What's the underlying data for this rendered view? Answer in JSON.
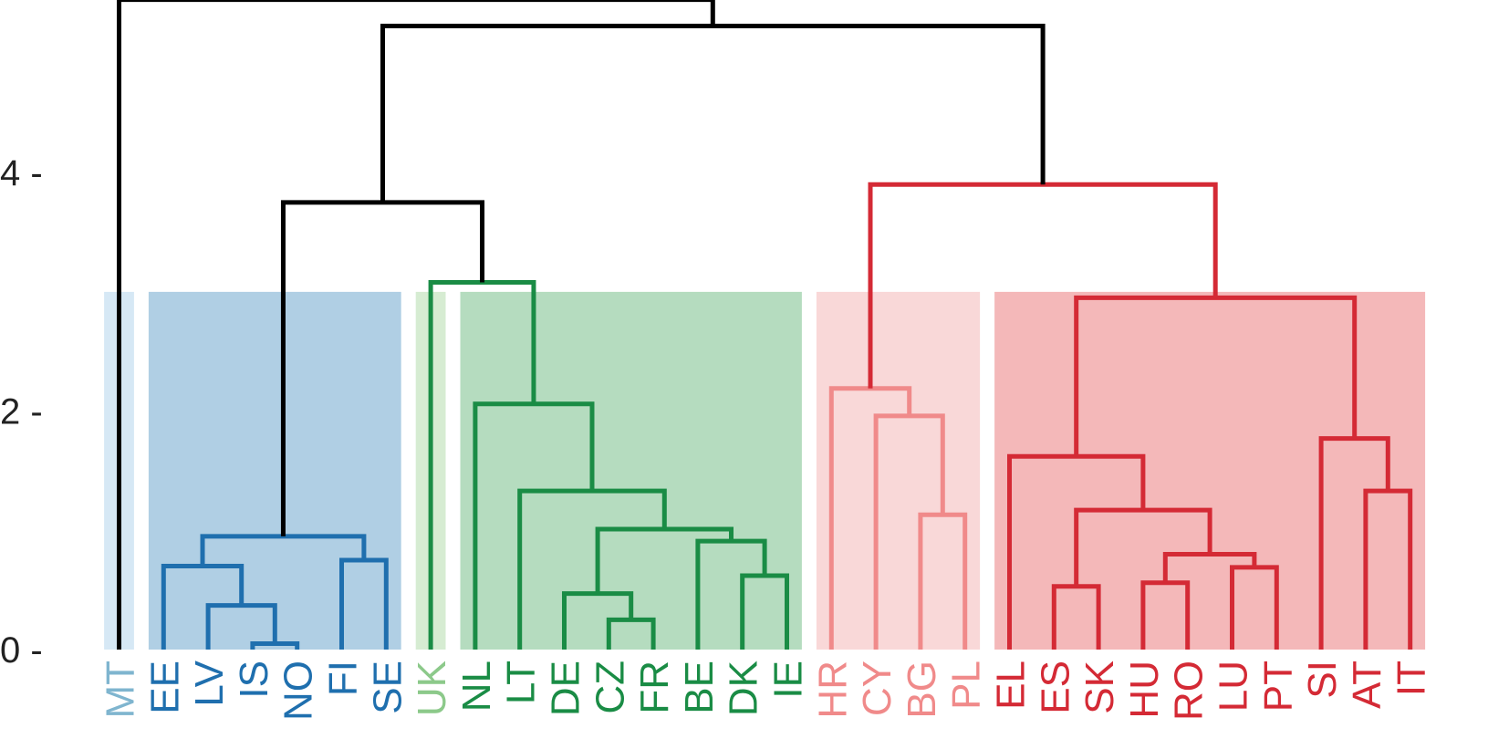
{
  "chart_data": {
    "type": "dendrogram",
    "title": "",
    "xlabel": "",
    "ylabel": "",
    "ylim": [
      0,
      5.45
    ],
    "y_ticks": [
      {
        "value": 0,
        "label": "0 -"
      },
      {
        "value": 2,
        "label": "2 -"
      },
      {
        "value": 4,
        "label": "4 -"
      }
    ],
    "cut_height": 3.0,
    "leaves": [
      {
        "label": "MT",
        "color": "#7fb5cf"
      },
      {
        "label": "EE",
        "color": "#1f6fae"
      },
      {
        "label": "LV",
        "color": "#1f6fae"
      },
      {
        "label": "IS",
        "color": "#1f6fae"
      },
      {
        "label": "NO",
        "color": "#1f6fae"
      },
      {
        "label": "FI",
        "color": "#1f6fae"
      },
      {
        "label": "SE",
        "color": "#1f6fae"
      },
      {
        "label": "UK",
        "color": "#8cc98a"
      },
      {
        "label": "NL",
        "color": "#1a8c45"
      },
      {
        "label": "LT",
        "color": "#1a8c45"
      },
      {
        "label": "DE",
        "color": "#1a8c45"
      },
      {
        "label": "CZ",
        "color": "#1a8c45"
      },
      {
        "label": "FR",
        "color": "#1a8c45"
      },
      {
        "label": "BE",
        "color": "#1a8c45"
      },
      {
        "label": "DK",
        "color": "#1a8c45"
      },
      {
        "label": "IE",
        "color": "#1a8c45"
      },
      {
        "label": "HR",
        "color": "#f08a8a"
      },
      {
        "label": "CY",
        "color": "#f08a8a"
      },
      {
        "label": "BG",
        "color": "#f08a8a"
      },
      {
        "label": "PL",
        "color": "#f08a8a"
      },
      {
        "label": "EL",
        "color": "#d42a35"
      },
      {
        "label": "ES",
        "color": "#d42a35"
      },
      {
        "label": "SK",
        "color": "#d42a35"
      },
      {
        "label": "HU",
        "color": "#d42a35"
      },
      {
        "label": "RO",
        "color": "#d42a35"
      },
      {
        "label": "LU",
        "color": "#d42a35"
      },
      {
        "label": "PT",
        "color": "#d42a35"
      },
      {
        "label": "SI",
        "color": "#d42a35"
      },
      {
        "label": "AT",
        "color": "#d42a35"
      },
      {
        "label": "IT",
        "color": "#d42a35"
      }
    ],
    "clusters": [
      {
        "first": 0,
        "last": 0,
        "color": "#d6e8f5"
      },
      {
        "first": 1,
        "last": 6,
        "color": "#b0cfe4"
      },
      {
        "first": 7,
        "last": 7,
        "color": "#d6ecd2"
      },
      {
        "first": 8,
        "last": 15,
        "color": "#b5dcbf"
      },
      {
        "first": 16,
        "last": 19,
        "color": "#f9d8d8"
      },
      {
        "first": 20,
        "last": 29,
        "color": "#f4b8b9"
      }
    ],
    "merges": [
      {
        "a": "IS",
        "b": "NO",
        "height": 0.05,
        "color": "#1f6fae"
      },
      {
        "a": "LV",
        "b": "IS+NO",
        "height": 0.37,
        "color": "#1f6fae"
      },
      {
        "a": "EE",
        "b": "LV+IS+NO",
        "height": 0.7,
        "color": "#1f6fae"
      },
      {
        "a": "FI",
        "b": "SE",
        "height": 0.75,
        "color": "#1f6fae"
      },
      {
        "a": "EE..NO",
        "b": "FI+SE",
        "height": 0.95,
        "color": "#1f6fae"
      },
      {
        "a": "CZ",
        "b": "FR",
        "height": 0.25,
        "color": "#1a8c45"
      },
      {
        "a": "DE",
        "b": "CZ+FR",
        "height": 0.47,
        "color": "#1a8c45"
      },
      {
        "a": "DK",
        "b": "IE",
        "height": 0.62,
        "color": "#1a8c45"
      },
      {
        "a": "BE",
        "b": "DK+IE",
        "height": 0.91,
        "color": "#1a8c45"
      },
      {
        "a": "DE..FR",
        "b": "BE..IE",
        "height": 1.01,
        "color": "#1a8c45"
      },
      {
        "a": "LT",
        "b": "DE..IE",
        "height": 1.33,
        "color": "#1a8c45"
      },
      {
        "a": "NL",
        "b": "LT..IE",
        "height": 2.06,
        "color": "#1a8c45"
      },
      {
        "a": "UK",
        "b": "NL..IE",
        "height": 3.08,
        "color": "#1a8c45"
      },
      {
        "a": "EE..SE",
        "b": "UK..IE",
        "height": 3.75,
        "color": "#000000"
      },
      {
        "a": "BG",
        "b": "PL",
        "height": 1.13,
        "color": "#f08a8a"
      },
      {
        "a": "CY",
        "b": "BG+PL",
        "height": 1.96,
        "color": "#f08a8a"
      },
      {
        "a": "HR",
        "b": "CY..PL",
        "height": 2.19,
        "color": "#f08a8a"
      },
      {
        "a": "ES",
        "b": "SK",
        "height": 0.53,
        "color": "#d42a35"
      },
      {
        "a": "HU",
        "b": "RO",
        "height": 0.56,
        "color": "#d42a35"
      },
      {
        "a": "LU",
        "b": "PT",
        "height": 0.69,
        "color": "#d42a35"
      },
      {
        "a": "HU+RO",
        "b": "LU+PT",
        "height": 0.8,
        "color": "#d42a35"
      },
      {
        "a": "ES+SK",
        "b": "HU..PT",
        "height": 1.17,
        "color": "#d42a35"
      },
      {
        "a": "EL",
        "b": "ES..PT",
        "height": 1.62,
        "color": "#d42a35"
      },
      {
        "a": "AT",
        "b": "IT",
        "height": 1.33,
        "color": "#d42a35"
      },
      {
        "a": "SI",
        "b": "AT+IT",
        "height": 1.77,
        "color": "#d42a35"
      },
      {
        "a": "EL..PT",
        "b": "SI..IT",
        "height": 2.95,
        "color": "#d42a35"
      },
      {
        "a": "HR..PL",
        "b": "EL..IT",
        "height": 3.9,
        "color": "#d42a35"
      },
      {
        "a": "EE..IE",
        "b": "HR..IT",
        "height": 5.23,
        "color": "#000000"
      },
      {
        "a": "MT",
        "b": "EE..IT",
        "height": 5.45,
        "color": "#000000"
      }
    ]
  }
}
